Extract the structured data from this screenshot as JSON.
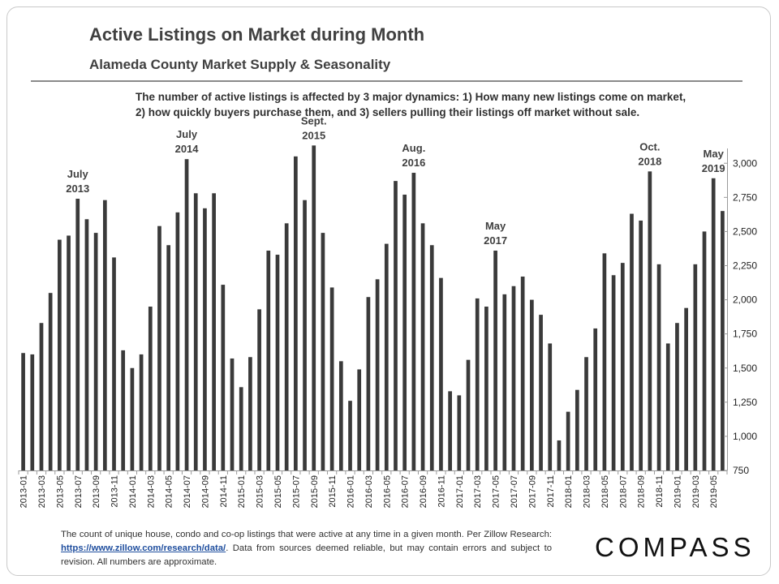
{
  "header": {
    "title": "Active Listings on Market during Month",
    "subtitle": "Alameda County Market Supply & Seasonality"
  },
  "note": {
    "line1": "The number of active listings is affected by 3 major dynamics: 1) How many new listings come on market,",
    "line2": "2) how quickly buyers purchase them, and 3) sellers pulling their listings off market without sale."
  },
  "footer": {
    "text1": "The count of unique house, condo and co-op listings that were active at any time in a given month. Per Zillow Research: ",
    "link": "https://www.zillow.com/research/data/",
    "text2": ". Data from sources deemed reliable, but may contain errors and subject to revision. All numbers are approximate."
  },
  "brand": {
    "logo": "COMPASS"
  },
  "chart_data": {
    "type": "bar",
    "bar_color": "#3a3a3a",
    "ylim": [
      750,
      3150
    ],
    "yticks": [
      750,
      1000,
      1250,
      1500,
      1750,
      2000,
      2250,
      2500,
      2750,
      3000
    ],
    "ytick_labels": [
      "750",
      "1,000",
      "1,250",
      "1,500",
      "1,750",
      "2,000",
      "2,250",
      "2,500",
      "2,750",
      "3,000"
    ],
    "y_axis_side": "right",
    "categories": [
      "2013-01",
      "2013-02",
      "2013-03",
      "2013-04",
      "2013-05",
      "2013-06",
      "2013-07",
      "2013-08",
      "2013-09",
      "2013-10",
      "2013-11",
      "2013-12",
      "2014-01",
      "2014-02",
      "2014-03",
      "2014-04",
      "2014-05",
      "2014-06",
      "2014-07",
      "2014-08",
      "2014-09",
      "2014-10",
      "2014-11",
      "2014-12",
      "2015-01",
      "2015-02",
      "2015-03",
      "2015-04",
      "2015-05",
      "2015-06",
      "2015-07",
      "2015-08",
      "2015-09",
      "2015-10",
      "2015-11",
      "2015-12",
      "2016-01",
      "2016-02",
      "2016-03",
      "2016-04",
      "2016-05",
      "2016-06",
      "2016-07",
      "2016-08",
      "2016-09",
      "2016-10",
      "2016-11",
      "2016-12",
      "2017-01",
      "2017-02",
      "2017-03",
      "2017-04",
      "2017-05",
      "2017-06",
      "2017-07",
      "2017-08",
      "2017-09",
      "2017-10",
      "2017-11",
      "2017-12",
      "2018-01",
      "2018-02",
      "2018-03",
      "2018-04",
      "2018-05",
      "2018-06",
      "2018-07",
      "2018-08",
      "2018-09",
      "2018-10",
      "2018-11",
      "2018-12",
      "2019-01",
      "2019-02",
      "2019-03",
      "2019-04",
      "2019-05",
      "2019-06"
    ],
    "values": [
      1610,
      1600,
      1830,
      2050,
      2440,
      2470,
      2740,
      2590,
      2490,
      2730,
      2310,
      1630,
      1500,
      1600,
      1950,
      2540,
      2400,
      2640,
      3030,
      2780,
      2670,
      2780,
      2110,
      1570,
      1360,
      1580,
      1930,
      2360,
      2330,
      2560,
      3050,
      2730,
      3130,
      2490,
      2090,
      1550,
      1260,
      1490,
      2020,
      2150,
      2410,
      2870,
      2770,
      2930,
      2560,
      2400,
      2160,
      1330,
      1300,
      1560,
      2010,
      1950,
      2360,
      2040,
      2100,
      2170,
      2000,
      1890,
      1680,
      970,
      1180,
      1340,
      1580,
      1790,
      2340,
      2180,
      2270,
      2630,
      2580,
      2940,
      2260,
      1680,
      1830,
      1940,
      2260,
      2500,
      2890,
      2650
    ],
    "xtick_labels": [
      "2013-01",
      "2013-03",
      "2013-05",
      "2013-07",
      "2013-09",
      "2013-11",
      "2014-01",
      "2014-03",
      "2014-05",
      "2014-07",
      "2014-09",
      "2014-11",
      "2015-01",
      "2015-03",
      "2015-05",
      "2015-07",
      "2015-09",
      "2015-11",
      "2016-01",
      "2016-03",
      "2016-05",
      "2016-07",
      "2016-09",
      "2016-11",
      "2017-01",
      "2017-03",
      "2017-05",
      "2017-07",
      "2017-09",
      "2017-11",
      "2018-01",
      "2018-03",
      "2018-05",
      "2018-07",
      "2018-09",
      "2018-11",
      "2019-01",
      "2019-03",
      "2019-05"
    ],
    "annotations": [
      {
        "category": "2013-07",
        "lines": [
          "July",
          "2013"
        ]
      },
      {
        "category": "2014-07",
        "lines": [
          "July",
          "2014"
        ]
      },
      {
        "category": "2015-09",
        "lines": [
          "Sept.",
          "2015"
        ]
      },
      {
        "category": "2016-08",
        "lines": [
          "Aug.",
          "2016"
        ]
      },
      {
        "category": "2017-05",
        "lines": [
          "May",
          "2017"
        ]
      },
      {
        "category": "2018-10",
        "lines": [
          "Oct.",
          "2018"
        ]
      },
      {
        "category": "2019-05",
        "lines": [
          "May",
          "2019"
        ]
      }
    ],
    "grid": false,
    "legend": "none"
  }
}
